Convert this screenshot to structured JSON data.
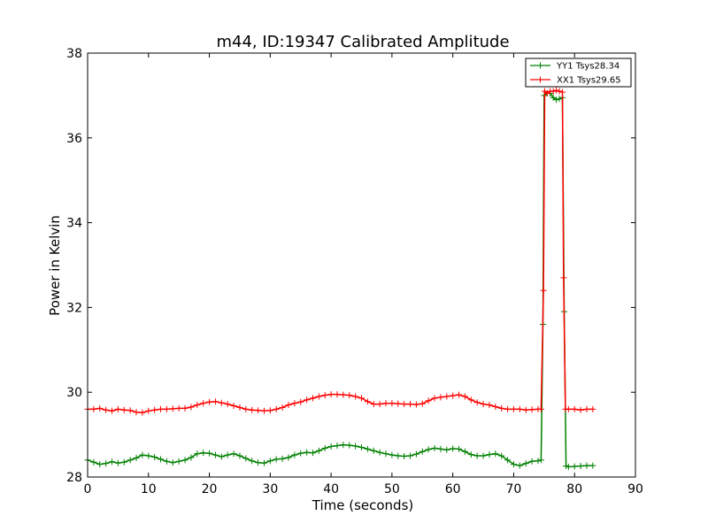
{
  "chart_data": {
    "type": "line",
    "title": "m44, ID:19347 Calibrated Amplitude",
    "xlabel": "Time (seconds)",
    "ylabel": "Power in Kelvin",
    "xlim": [
      0,
      90
    ],
    "ylim": [
      28,
      38
    ],
    "xticks": [
      "0",
      "10",
      "20",
      "30",
      "40",
      "50",
      "60",
      "70",
      "80",
      "90"
    ],
    "yticks": [
      "28",
      "30",
      "32",
      "34",
      "36",
      "38"
    ],
    "grid": false,
    "legend_position": "top-right",
    "series": [
      {
        "name": "YY1 Tsys28.34",
        "color": "#008000",
        "marker": "+",
        "points": [
          [
            0,
            28.4
          ],
          [
            1,
            28.35
          ],
          [
            2,
            28.3
          ],
          [
            3,
            28.32
          ],
          [
            4,
            28.36
          ],
          [
            5,
            28.33
          ],
          [
            6,
            28.35
          ],
          [
            7,
            28.4
          ],
          [
            8,
            28.45
          ],
          [
            9,
            28.52
          ],
          [
            10,
            28.5
          ],
          [
            11,
            28.47
          ],
          [
            12,
            28.42
          ],
          [
            13,
            28.37
          ],
          [
            14,
            28.34
          ],
          [
            15,
            28.37
          ],
          [
            16,
            28.4
          ],
          [
            17,
            28.46
          ],
          [
            18,
            28.55
          ],
          [
            19,
            28.57
          ],
          [
            20,
            28.56
          ],
          [
            21,
            28.52
          ],
          [
            22,
            28.48
          ],
          [
            23,
            28.52
          ],
          [
            24,
            28.55
          ],
          [
            25,
            28.5
          ],
          [
            26,
            28.44
          ],
          [
            27,
            28.38
          ],
          [
            28,
            28.34
          ],
          [
            29,
            28.33
          ],
          [
            30,
            28.38
          ],
          [
            31,
            28.42
          ],
          [
            32,
            28.43
          ],
          [
            33,
            28.46
          ],
          [
            34,
            28.52
          ],
          [
            35,
            28.56
          ],
          [
            36,
            28.58
          ],
          [
            37,
            28.57
          ],
          [
            38,
            28.62
          ],
          [
            39,
            28.68
          ],
          [
            40,
            28.72
          ],
          [
            41,
            28.74
          ],
          [
            42,
            28.76
          ],
          [
            43,
            28.75
          ],
          [
            44,
            28.73
          ],
          [
            45,
            28.7
          ],
          [
            46,
            28.66
          ],
          [
            47,
            28.62
          ],
          [
            48,
            28.58
          ],
          [
            49,
            28.55
          ],
          [
            50,
            28.52
          ],
          [
            51,
            28.5
          ],
          [
            52,
            28.49
          ],
          [
            53,
            28.5
          ],
          [
            54,
            28.54
          ],
          [
            55,
            28.6
          ],
          [
            56,
            28.65
          ],
          [
            57,
            28.68
          ],
          [
            58,
            28.66
          ],
          [
            59,
            28.64
          ],
          [
            60,
            28.67
          ],
          [
            61,
            28.66
          ],
          [
            62,
            28.6
          ],
          [
            63,
            28.53
          ],
          [
            64,
            28.5
          ],
          [
            65,
            28.5
          ],
          [
            66,
            28.53
          ],
          [
            67,
            28.55
          ],
          [
            68,
            28.5
          ],
          [
            69,
            28.4
          ],
          [
            70,
            28.3
          ],
          [
            71,
            28.27
          ],
          [
            72,
            28.32
          ],
          [
            73,
            28.37
          ],
          [
            74,
            28.38
          ],
          [
            74.5,
            28.4
          ],
          [
            74.8,
            31.6
          ],
          [
            75,
            37.0
          ],
          [
            75.5,
            37.05
          ],
          [
            76,
            37.05
          ],
          [
            76.5,
            36.95
          ],
          [
            77,
            36.9
          ],
          [
            77.5,
            36.92
          ],
          [
            78,
            36.95
          ],
          [
            78.3,
            31.9
          ],
          [
            78.6,
            28.26
          ],
          [
            79,
            28.24
          ],
          [
            80,
            28.25
          ],
          [
            81,
            28.26
          ],
          [
            82,
            28.27
          ],
          [
            83,
            28.27
          ]
        ]
      },
      {
        "name": "XX1 Tsys29.65",
        "color": "#ff0000",
        "marker": "+",
        "points": [
          [
            0,
            29.6
          ],
          [
            1,
            29.6
          ],
          [
            2,
            29.62
          ],
          [
            3,
            29.58
          ],
          [
            4,
            29.56
          ],
          [
            5,
            29.6
          ],
          [
            6,
            29.58
          ],
          [
            7,
            29.57
          ],
          [
            8,
            29.53
          ],
          [
            9,
            29.52
          ],
          [
            10,
            29.56
          ],
          [
            11,
            29.58
          ],
          [
            12,
            29.6
          ],
          [
            13,
            29.6
          ],
          [
            14,
            29.61
          ],
          [
            15,
            29.62
          ],
          [
            16,
            29.62
          ],
          [
            17,
            29.65
          ],
          [
            18,
            29.7
          ],
          [
            19,
            29.74
          ],
          [
            20,
            29.77
          ],
          [
            21,
            29.78
          ],
          [
            22,
            29.75
          ],
          [
            23,
            29.72
          ],
          [
            24,
            29.68
          ],
          [
            25,
            29.64
          ],
          [
            26,
            29.6
          ],
          [
            27,
            29.58
          ],
          [
            28,
            29.57
          ],
          [
            29,
            29.56
          ],
          [
            30,
            29.57
          ],
          [
            31,
            29.6
          ],
          [
            32,
            29.64
          ],
          [
            33,
            29.7
          ],
          [
            34,
            29.74
          ],
          [
            35,
            29.77
          ],
          [
            36,
            29.82
          ],
          [
            37,
            29.86
          ],
          [
            38,
            29.9
          ],
          [
            39,
            29.93
          ],
          [
            40,
            29.95
          ],
          [
            41,
            29.95
          ],
          [
            42,
            29.94
          ],
          [
            43,
            29.93
          ],
          [
            44,
            29.9
          ],
          [
            45,
            29.86
          ],
          [
            46,
            29.78
          ],
          [
            47,
            29.72
          ],
          [
            48,
            29.72
          ],
          [
            49,
            29.74
          ],
          [
            50,
            29.74
          ],
          [
            51,
            29.73
          ],
          [
            52,
            29.72
          ],
          [
            53,
            29.72
          ],
          [
            54,
            29.71
          ],
          [
            55,
            29.73
          ],
          [
            56,
            29.8
          ],
          [
            57,
            29.86
          ],
          [
            58,
            29.88
          ],
          [
            59,
            29.9
          ],
          [
            60,
            29.92
          ],
          [
            61,
            29.94
          ],
          [
            62,
            29.9
          ],
          [
            63,
            29.82
          ],
          [
            64,
            29.76
          ],
          [
            65,
            29.72
          ],
          [
            66,
            29.7
          ],
          [
            67,
            29.66
          ],
          [
            68,
            29.62
          ],
          [
            69,
            29.6
          ],
          [
            70,
            29.6
          ],
          [
            71,
            29.6
          ],
          [
            72,
            29.58
          ],
          [
            73,
            29.59
          ],
          [
            74,
            29.6
          ],
          [
            74.5,
            29.6
          ],
          [
            74.9,
            32.4
          ],
          [
            75.1,
            37.1
          ],
          [
            75.5,
            37.05
          ],
          [
            76,
            37.1
          ],
          [
            76.5,
            37.1
          ],
          [
            77,
            37.12
          ],
          [
            77.5,
            37.1
          ],
          [
            78,
            37.08
          ],
          [
            78.2,
            32.7
          ],
          [
            78.5,
            29.6
          ],
          [
            79,
            29.6
          ],
          [
            80,
            29.6
          ],
          [
            81,
            29.58
          ],
          [
            82,
            29.6
          ],
          [
            83,
            29.6
          ]
        ]
      }
    ]
  }
}
